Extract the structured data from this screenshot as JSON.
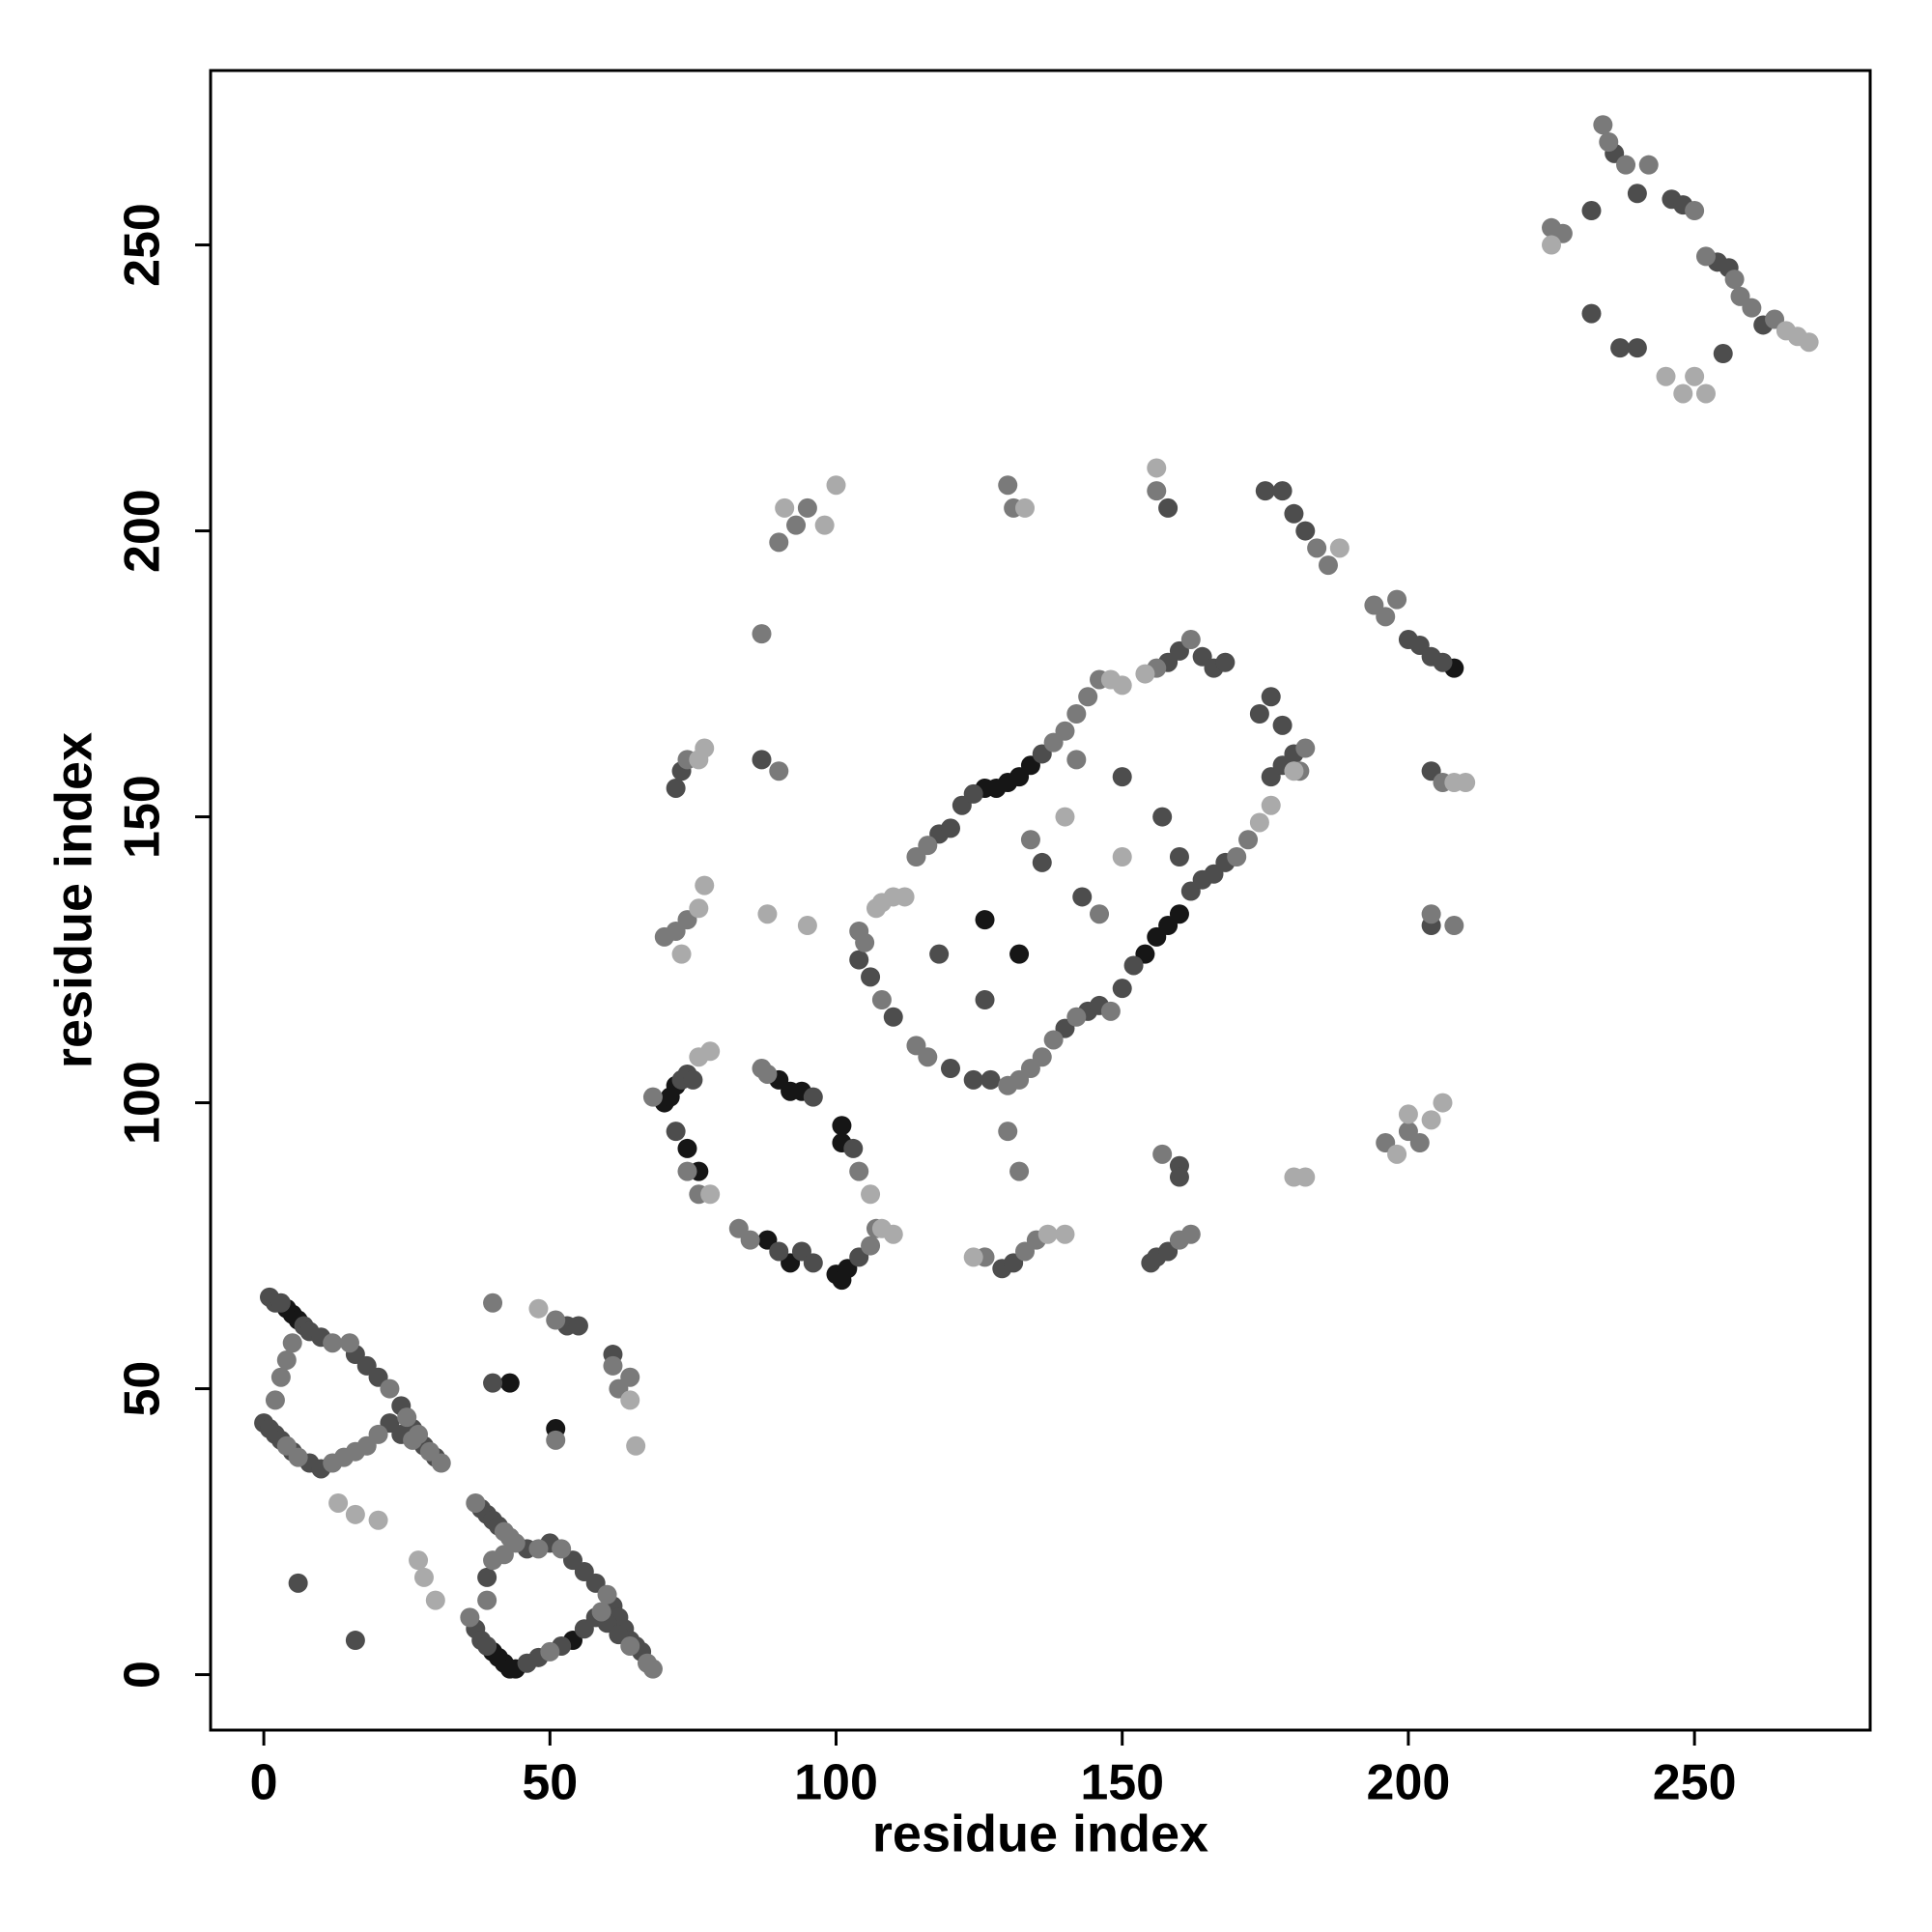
{
  "chart_data": {
    "type": "scatter",
    "x_label": "residue index",
    "y_label": "residue index",
    "xlim": [
      -9.3,
      280.7
    ],
    "ylim": [
      -9.7,
      280.5
    ],
    "xticks": [
      0,
      50,
      100,
      150,
      200,
      250
    ],
    "yticks": [
      0,
      50,
      100,
      150,
      200,
      250
    ],
    "series": [
      {
        "color": "#161616",
        "x": [
          4,
          5,
          6,
          43,
          51,
          40,
          41,
          42,
          43,
          44,
          54,
          70,
          71,
          72,
          74,
          76,
          90,
          92,
          94,
          101,
          101,
          88,
          92,
          100,
          101,
          102,
          126,
          128,
          130,
          132,
          134,
          126,
          132,
          156,
          158,
          160,
          154,
          208
        ],
        "values": [
          64,
          63,
          62,
          51,
          43,
          4,
          3,
          2,
          1,
          1,
          6,
          100,
          101,
          103,
          92,
          88,
          104,
          102,
          102,
          96,
          93,
          76,
          72,
          70,
          69,
          71,
          155,
          155,
          156,
          157,
          159,
          132,
          126,
          129,
          131,
          133,
          126,
          176
        ]
      },
      {
        "color": "#4d4d4d",
        "x": [
          1,
          2,
          3,
          7,
          8,
          10,
          16,
          18,
          20,
          24,
          26,
          28,
          30,
          0,
          1,
          2,
          3,
          5,
          8,
          10,
          22,
          24,
          38,
          39,
          40,
          41,
          46,
          50,
          54,
          56,
          58,
          61,
          62,
          63,
          64,
          65,
          66,
          37,
          38,
          39,
          46,
          48,
          52,
          56,
          58,
          60,
          62,
          53,
          55,
          61,
          40,
          39,
          6,
          16,
          73,
          74,
          75,
          72,
          96,
          103,
          90,
          94,
          96,
          104,
          104,
          106,
          110,
          120,
          124,
          127,
          140,
          144,
          146,
          150,
          152,
          162,
          164,
          166,
          168,
          122,
          124,
          136,
          118,
          120,
          158,
          160,
          164,
          166,
          168,
          136,
          150,
          157,
          160,
          143,
          118,
          126,
          72,
          73,
          87,
          174,
          176,
          178,
          176,
          178,
          180,
          175,
          178,
          180,
          182,
          200,
          202,
          204,
          206,
          158,
          204,
          204,
          160,
          160,
          155,
          156,
          158,
          129,
          131,
          232,
          232,
          237,
          240,
          246,
          248,
          254,
          256,
          262,
          255,
          236,
          240
        ],
        "values": [
          66,
          65,
          65,
          61,
          60,
          59,
          56,
          54,
          52,
          47,
          43,
          40,
          38,
          44,
          43,
          42,
          41,
          39,
          37,
          36,
          44,
          42,
          29,
          28,
          27,
          26,
          22,
          23,
          20,
          18,
          16,
          12,
          10,
          8,
          6,
          5,
          4,
          8,
          6,
          5,
          2,
          3,
          5,
          8,
          10,
          9,
          7,
          61,
          61,
          56,
          51,
          17,
          16,
          6,
          104,
          105,
          104,
          95,
          101,
          92,
          74,
          74,
          72,
          73,
          125,
          122,
          115,
          106,
          104,
          104,
          113,
          116,
          117,
          120,
          124,
          137,
          139,
          140,
          142,
          152,
          154,
          161,
          147,
          148,
          177,
          179,
          178,
          176,
          177,
          142,
          157,
          150,
          143,
          136,
          126,
          118,
          155,
          158,
          160,
          168,
          171,
          166,
          157,
          159,
          161,
          207,
          207,
          203,
          200,
          181,
          180,
          178,
          177,
          204,
          158,
          131,
          89,
          87,
          72,
          73,
          74,
          71,
          72,
          256,
          238,
          232,
          232,
          258,
          257,
          247,
          246,
          236,
          231,
          266,
          259
        ]
      },
      {
        "color": "#7a7a7a",
        "x": [
          4,
          5,
          2,
          3,
          12,
          15,
          22,
          25,
          27,
          29,
          31,
          4,
          6,
          12,
          14,
          16,
          18,
          20,
          26,
          37,
          42,
          43,
          44,
          48,
          52,
          60,
          67,
          68,
          36,
          50,
          59,
          64,
          39,
          40,
          42,
          40,
          51,
          51,
          61,
          62,
          64,
          68,
          74,
          76,
          87,
          88,
          104,
          83,
          85,
          106,
          107,
          108,
          114,
          116,
          130,
          132,
          134,
          136,
          138,
          142,
          148,
          170,
          172,
          181,
          182,
          104,
          105,
          114,
          116,
          138,
          140,
          142,
          144,
          146,
          156,
          162,
          130,
          132,
          134,
          146,
          142,
          74,
          90,
          70,
          72,
          74,
          87,
          90,
          93,
          95,
          130,
          131,
          156,
          184,
          186,
          194,
          196,
          198,
          206,
          204,
          208,
          196,
          200,
          202,
          157,
          160,
          162,
          133,
          135,
          126,
          234,
          235,
          238,
          242,
          250,
          252,
          257,
          258,
          260,
          264,
          225,
          227
        ],
        "values": [
          55,
          58,
          48,
          52,
          58,
          58,
          50,
          45,
          42,
          39,
          37,
          40,
          38,
          37,
          38,
          39,
          40,
          42,
          41,
          30,
          25,
          24,
          23,
          22,
          22,
          14,
          2,
          1,
          10,
          4,
          11,
          5,
          13,
          20,
          21,
          65,
          41,
          62,
          54,
          50,
          52,
          101,
          88,
          84,
          106,
          105,
          88,
          78,
          76,
          75,
          78,
          118,
          110,
          108,
          103,
          104,
          106,
          108,
          111,
          115,
          116,
          143,
          146,
          158,
          162,
          130,
          128,
          143,
          145,
          163,
          165,
          168,
          171,
          174,
          176,
          181,
          95,
          88,
          146,
          133,
          160,
          160,
          158,
          129,
          130,
          132,
          182,
          198,
          201,
          204,
          208,
          204,
          207,
          197,
          194,
          187,
          185,
          188,
          156,
          133,
          131,
          93,
          95,
          93,
          91,
          76,
          77,
          74,
          76,
          73,
          271,
          268,
          264,
          264,
          256,
          248,
          244,
          241,
          239,
          237,
          253,
          252
        ]
      },
      {
        "color": "#aaaaaa",
        "x": [
          13,
          16,
          20,
          27,
          28,
          30,
          65,
          64,
          48,
          76,
          78,
          78,
          106,
          108,
          110,
          107,
          108,
          110,
          112,
          148,
          150,
          154,
          174,
          176,
          180,
          150,
          140,
          76,
          77,
          73,
          76,
          77,
          88,
          95,
          91,
          98,
          100,
          133,
          156,
          188,
          208,
          210,
          198,
          200,
          204,
          206,
          180,
          182,
          124,
          137,
          140,
          266,
          268,
          270,
          225,
          245,
          248,
          250,
          252
        ],
        "values": [
          30,
          28,
          27,
          20,
          17,
          13,
          40,
          48,
          64,
          108,
          109,
          84,
          84,
          78,
          77,
          134,
          135,
          136,
          136,
          174,
          173,
          175,
          149,
          152,
          158,
          143,
          150,
          134,
          138,
          126,
          160,
          162,
          133,
          131,
          204,
          201,
          208,
          204,
          211,
          197,
          156,
          156,
          91,
          98,
          97,
          100,
          87,
          87,
          73,
          77,
          77,
          235,
          234,
          233,
          250,
          227,
          224,
          227,
          224
        ]
      }
    ]
  }
}
